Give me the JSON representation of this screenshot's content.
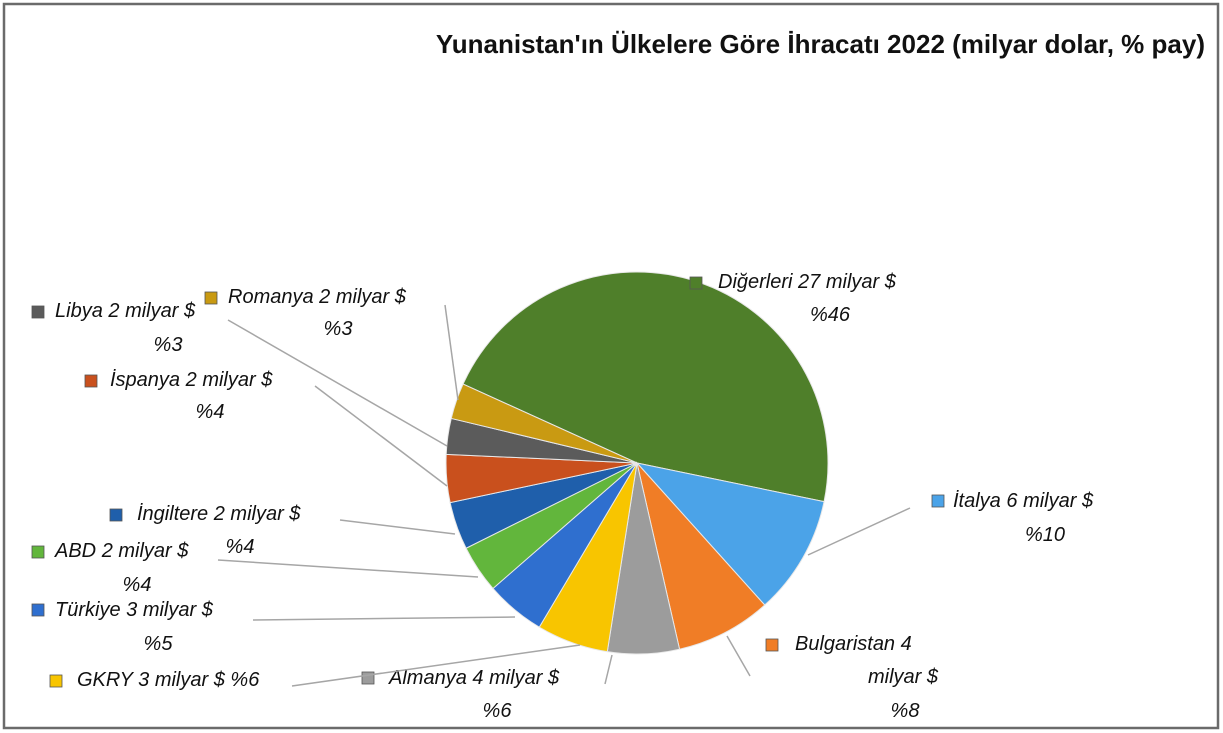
{
  "chart_data": {
    "type": "pie",
    "title": "Yunanistan'ın Ülkelere Göre İhracatı 2022 (milyar dolar, % pay)",
    "categories": [
      "Diğerleri",
      "İtalya",
      "Bulgaristan",
      "Almanya",
      "GKRY",
      "Türkiye",
      "ABD",
      "İngiltere",
      "İspanya",
      "Libya",
      "Romanya"
    ],
    "values": [
      46,
      10,
      8,
      6,
      6,
      5,
      4,
      4,
      4,
      3,
      3
    ],
    "value_labels": [
      "%46",
      "%10",
      "%8",
      "%6",
      "%6",
      "%5",
      "%4",
      "%4",
      "%4",
      "%3",
      "%3"
    ],
    "amounts": [
      27,
      6,
      4,
      4,
      3,
      3,
      2,
      2,
      2,
      2,
      2
    ],
    "unit": "milyar $",
    "colors": [
      "#4f7f2a",
      "#4ba3e8",
      "#f07d26",
      "#9c9c9c",
      "#f8c500",
      "#2f6fcf",
      "#62b63c",
      "#1f5fab",
      "#c9501d",
      "#5b5b5b",
      "#c99a12"
    ]
  }
}
